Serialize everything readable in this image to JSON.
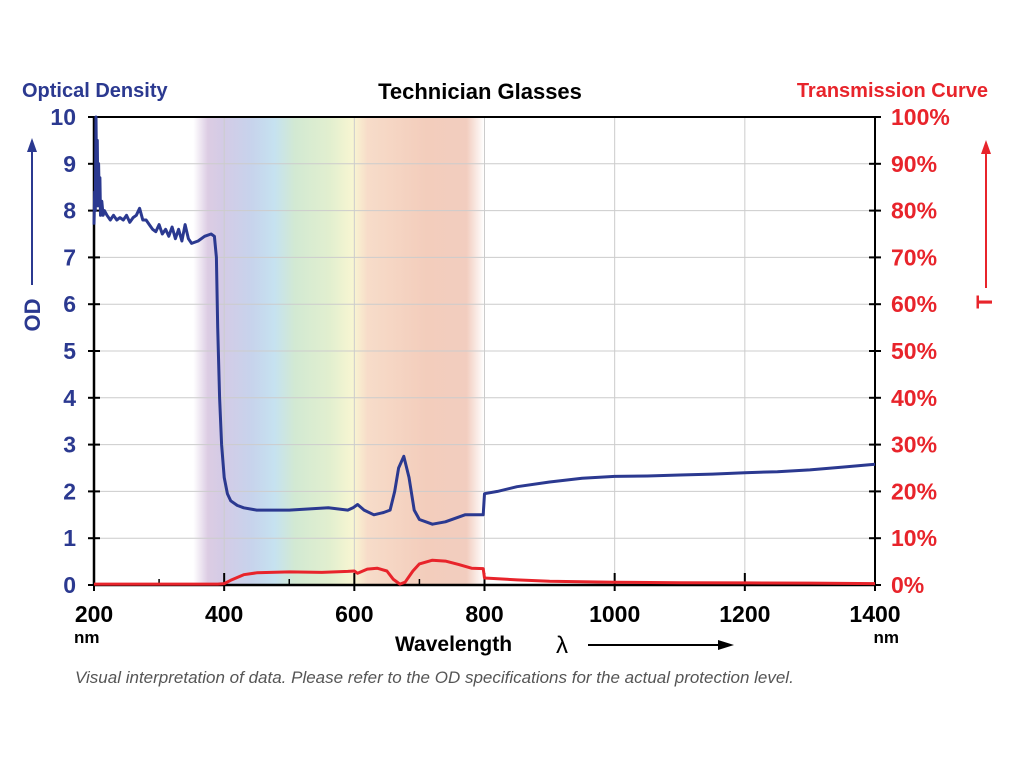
{
  "chart_data": {
    "type": "line",
    "title": "Technician Glasses",
    "left_axis_title": "Optical Density",
    "right_axis_title": "Transmission Curve",
    "ylabel": "OD",
    "y2label": "T",
    "xlabel": "Wavelength",
    "xlabel_symbol": "λ",
    "x_unit": "nm",
    "xlim": [
      200,
      1400
    ],
    "ylim": [
      0,
      10
    ],
    "y2lim": [
      0,
      100
    ],
    "x_ticks": [
      200,
      400,
      600,
      800,
      1000,
      1200,
      1400
    ],
    "x_tick_labels": [
      "200",
      "400",
      "600",
      "800",
      "1000",
      "1200",
      "1400"
    ],
    "y_ticks": [
      "0",
      "1",
      "2",
      "3",
      "4",
      "5",
      "6",
      "7",
      "8",
      "9",
      "10"
    ],
    "y2_ticks": [
      "0%",
      "10%",
      "20%",
      "30%",
      "40%",
      "50%",
      "60%",
      "70%",
      "80%",
      "90%",
      "100%"
    ],
    "grid": true,
    "visible_band_nm": [
      365,
      790
    ],
    "footnote": "Visual interpretation of data. Please refer to the OD specifications for the actual protection level.",
    "colors": {
      "od": "#2b3990",
      "transmission": "#e8242b",
      "title": "#000000",
      "footnote": "#555555"
    },
    "series": [
      {
        "name": "OD",
        "axis": "left",
        "x": [
          200,
          201,
          202,
          203,
          204,
          205,
          206,
          207,
          208,
          209,
          210,
          212,
          214,
          216,
          220,
          225,
          230,
          235,
          240,
          245,
          250,
          255,
          260,
          265,
          270,
          275,
          280,
          285,
          290,
          295,
          300,
          305,
          310,
          315,
          320,
          325,
          330,
          335,
          340,
          345,
          350,
          360,
          370,
          380,
          385,
          388,
          390,
          393,
          396,
          400,
          405,
          410,
          420,
          430,
          450,
          500,
          560,
          590,
          598,
          605,
          615,
          630,
          645,
          655,
          662,
          668,
          676,
          684,
          692,
          700,
          720,
          740,
          770,
          798,
          800,
          820,
          850,
          900,
          950,
          1000,
          1050,
          1100,
          1150,
          1200,
          1250,
          1300,
          1350,
          1400
        ],
        "y": [
          7.7,
          8.4,
          8.0,
          10.0,
          8.6,
          9.5,
          8.1,
          9.0,
          8.3,
          8.7,
          7.9,
          8.2,
          7.9,
          8.0,
          7.9,
          7.8,
          7.9,
          7.8,
          7.85,
          7.8,
          7.9,
          7.75,
          7.85,
          7.9,
          8.05,
          7.8,
          7.8,
          7.7,
          7.6,
          7.55,
          7.7,
          7.5,
          7.6,
          7.45,
          7.65,
          7.4,
          7.6,
          7.35,
          7.7,
          7.4,
          7.3,
          7.35,
          7.45,
          7.5,
          7.45,
          7.0,
          5.5,
          4.0,
          3.0,
          2.3,
          1.95,
          1.8,
          1.7,
          1.65,
          1.6,
          1.6,
          1.65,
          1.6,
          1.65,
          1.72,
          1.6,
          1.5,
          1.55,
          1.6,
          2.0,
          2.5,
          2.75,
          2.3,
          1.6,
          1.4,
          1.3,
          1.35,
          1.5,
          1.5,
          1.95,
          2.0,
          2.1,
          2.2,
          2.28,
          2.32,
          2.33,
          2.35,
          2.37,
          2.4,
          2.42,
          2.46,
          2.52,
          2.58
        ]
      },
      {
        "name": "T",
        "axis": "right",
        "x": [
          200,
          300,
          390,
          400,
          410,
          430,
          450,
          500,
          550,
          590,
          600,
          605,
          620,
          635,
          650,
          660,
          670,
          678,
          690,
          700,
          720,
          740,
          760,
          780,
          798,
          800,
          850,
          900,
          1000,
          1100,
          1200,
          1300,
          1400
        ],
        "y": [
          0.2,
          0.2,
          0.2,
          0.3,
          1.0,
          2.2,
          2.6,
          2.8,
          2.7,
          2.9,
          3.0,
          2.5,
          3.4,
          3.6,
          3.0,
          1.2,
          0.2,
          0.6,
          3.0,
          4.5,
          5.3,
          5.1,
          4.4,
          3.6,
          3.5,
          1.5,
          1.1,
          0.8,
          0.6,
          0.5,
          0.45,
          0.4,
          0.3
        ]
      }
    ]
  }
}
